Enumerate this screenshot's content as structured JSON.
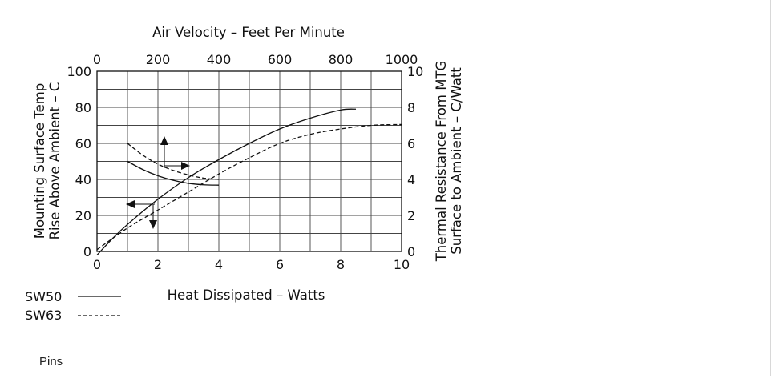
{
  "caption": "Pins",
  "chart_data": {
    "type": "line",
    "top_axis": {
      "label": "Air Velocity – Feet Per Minute",
      "range": [
        0,
        1000
      ],
      "ticks": [
        0,
        200,
        400,
        600,
        800,
        1000
      ]
    },
    "bottom_axis": {
      "label": "Heat Dissipated – Watts",
      "range": [
        0,
        10
      ],
      "ticks": [
        0,
        2,
        4,
        6,
        8,
        10
      ]
    },
    "left_axis": {
      "label_line1": "Mounting Surface Temp",
      "label_line2": "Rise Above Ambient – C",
      "range": [
        0,
        100
      ],
      "ticks": [
        0,
        20,
        40,
        60,
        80,
        100
      ]
    },
    "right_axis": {
      "label_line1": "Thermal Resistance From MTG",
      "label_line2": "Surface to Ambient – C/Watt",
      "range": [
        0,
        10
      ],
      "ticks": [
        0,
        2,
        4,
        6,
        8,
        10
      ]
    },
    "grid": true,
    "legend": [
      {
        "name": "SW50",
        "style": "solid"
      },
      {
        "name": "SW63",
        "style": "dashed"
      }
    ],
    "series": [
      {
        "name": "SW50",
        "kind": "temperature_rise",
        "axes": "bottom-left",
        "style": "solid",
        "x": [
          0,
          0.5,
          1,
          2,
          3,
          4,
          5,
          6,
          7,
          8,
          8.5
        ],
        "y": [
          -2,
          7,
          15,
          29,
          41,
          51,
          60,
          68,
          74,
          78.5,
          79
        ]
      },
      {
        "name": "SW63",
        "kind": "temperature_rise",
        "axes": "bottom-left",
        "style": "dashed",
        "x": [
          0,
          1,
          2,
          3,
          4,
          5,
          6,
          7,
          8,
          9,
          10
        ],
        "y": [
          1,
          13,
          23,
          33,
          43,
          52,
          60,
          65,
          68,
          70,
          70.5
        ]
      },
      {
        "name": "SW50",
        "kind": "thermal_resistance",
        "axes": "top-right",
        "style": "solid",
        "x": [
          100,
          150,
          200,
          250,
          300,
          350,
          400
        ],
        "y": [
          5,
          4.55,
          4.2,
          3.95,
          3.78,
          3.7,
          3.68
        ]
      },
      {
        "name": "SW63",
        "kind": "thermal_resistance",
        "axes": "top-right",
        "style": "dashed",
        "x": [
          100,
          150,
          200,
          250,
          300,
          350,
          400
        ],
        "y": [
          6,
          5.35,
          4.85,
          4.5,
          4.25,
          4.07,
          4.0
        ]
      }
    ]
  }
}
